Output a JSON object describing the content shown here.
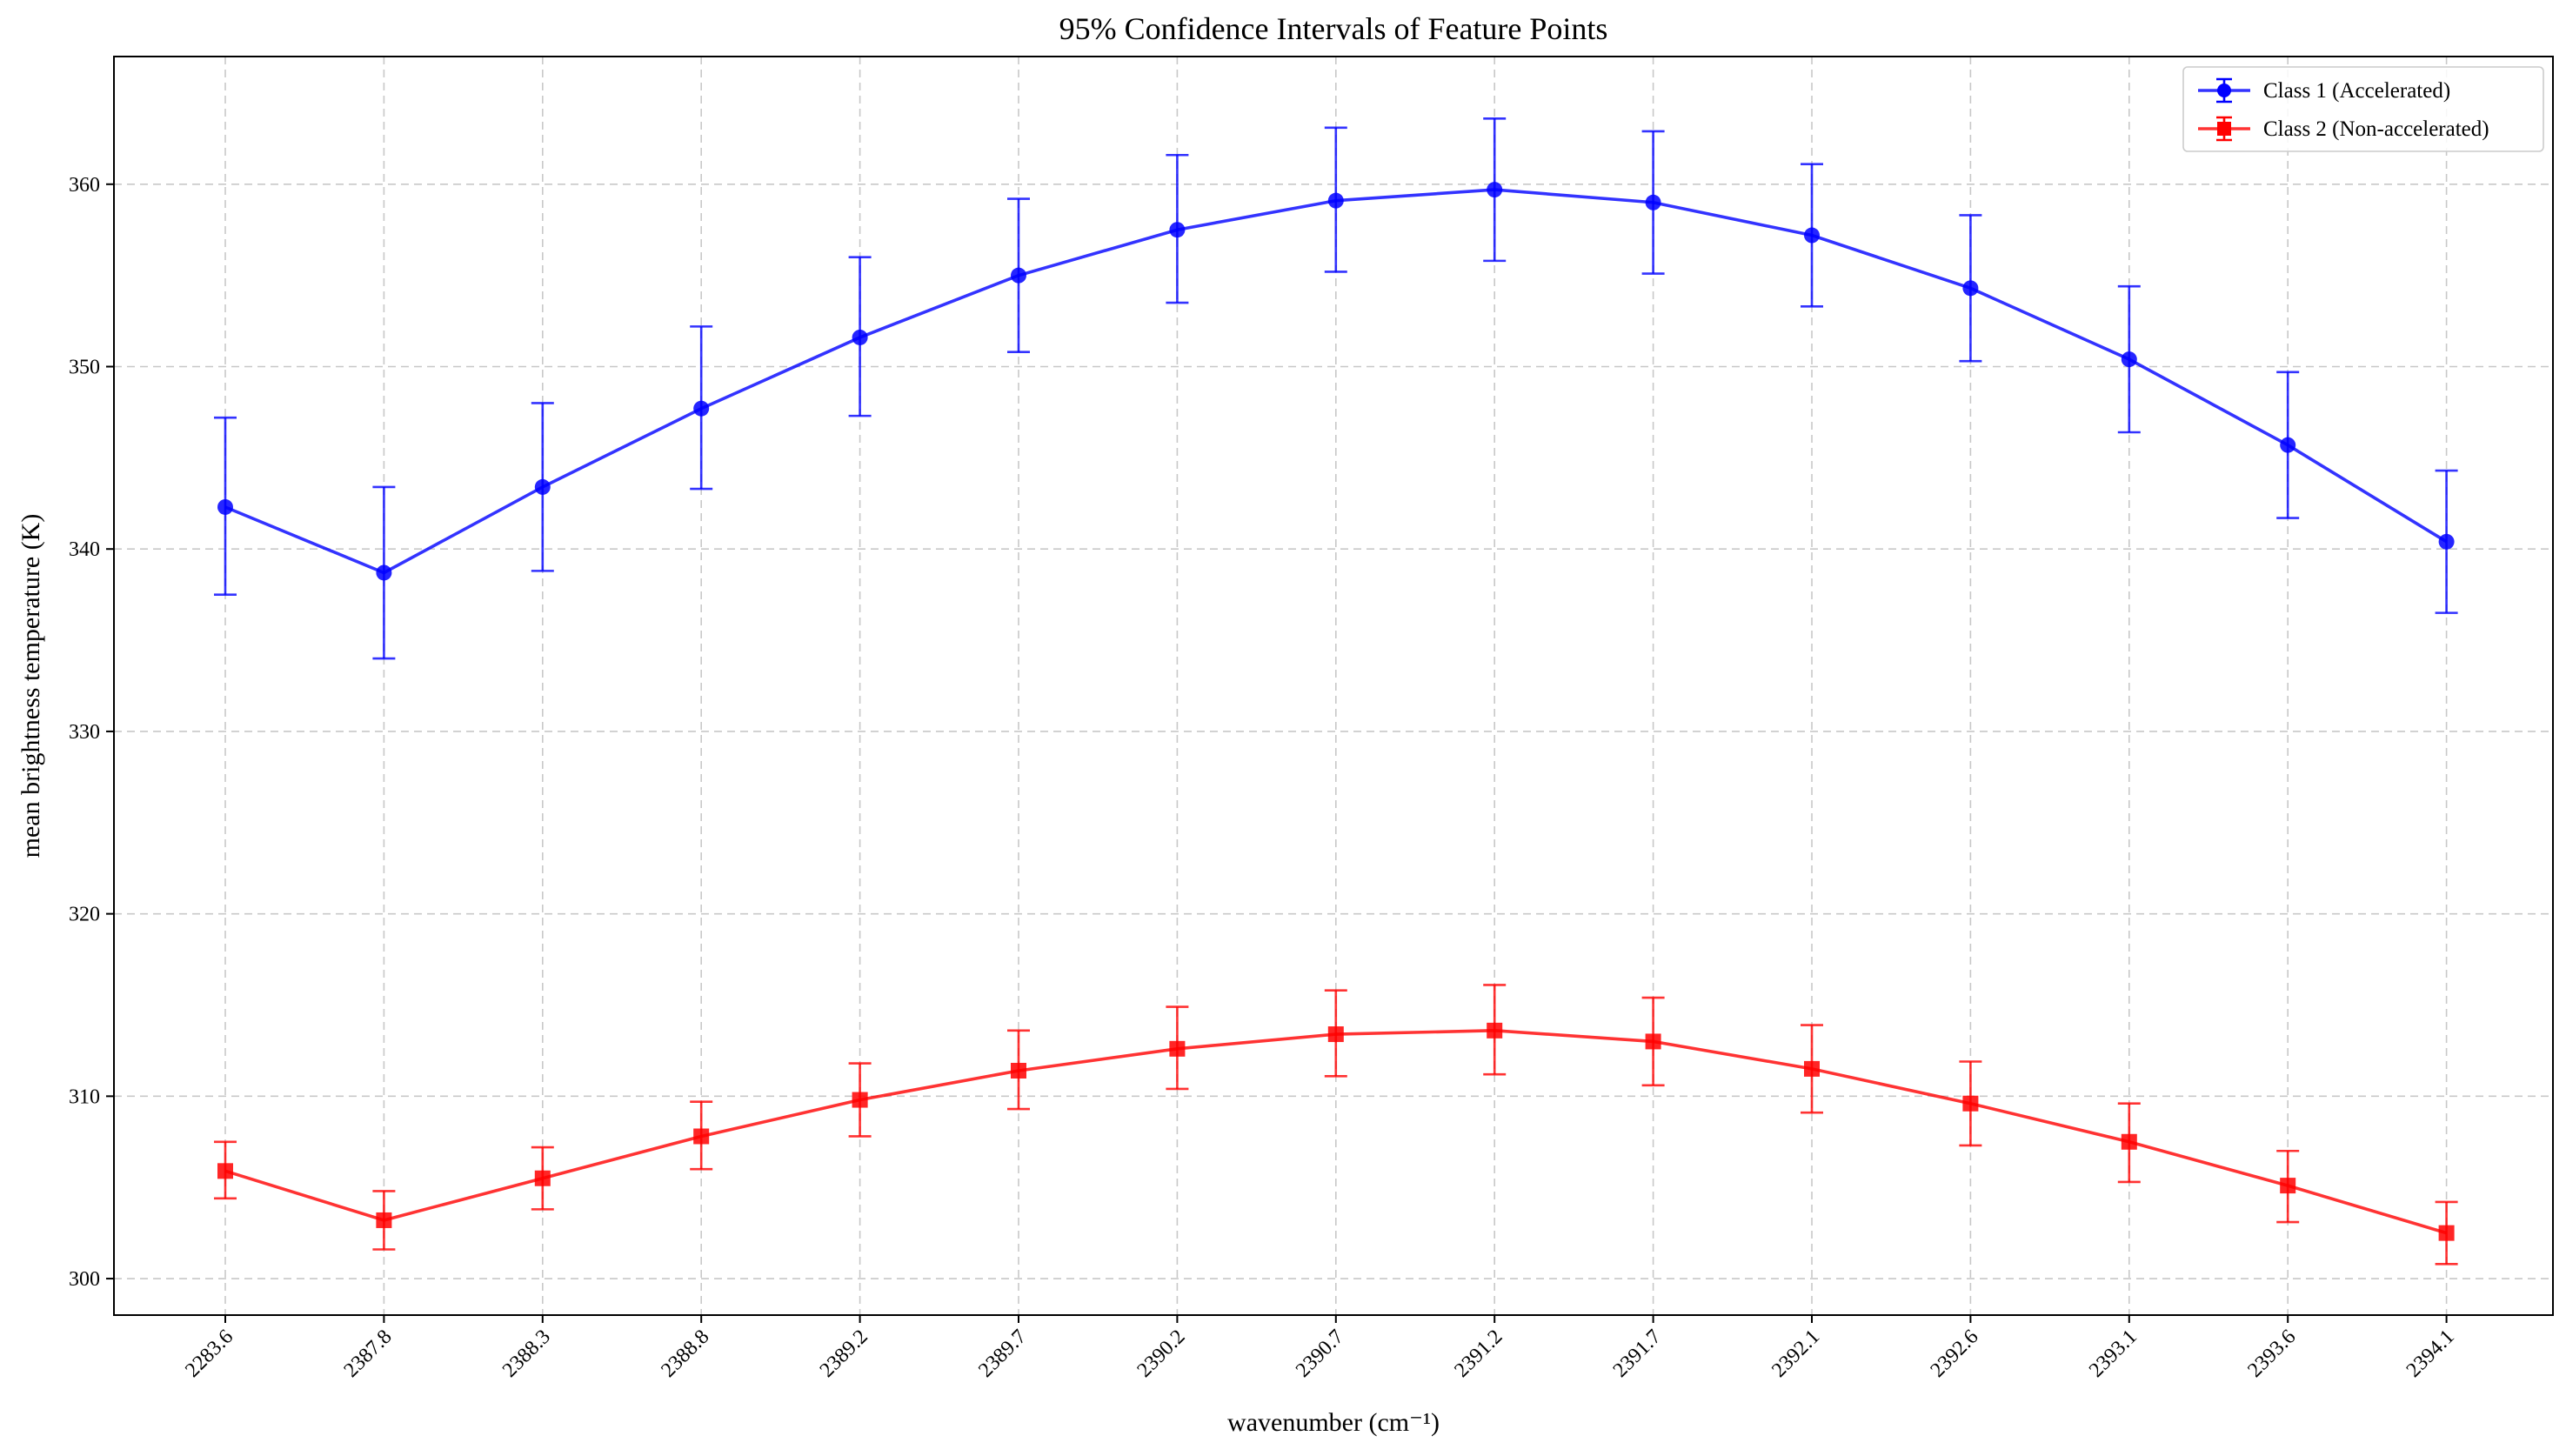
{
  "chart_data": {
    "type": "line",
    "title": "95% Confidence Intervals of Feature Points",
    "xlabel": "wavenumber (cm⁻¹)",
    "ylabel": "mean brightness temperature (K)",
    "categories": [
      "2283.6",
      "2387.8",
      "2388.3",
      "2388.8",
      "2389.2",
      "2389.7",
      "2390.2",
      "2390.7",
      "2391.2",
      "2391.7",
      "2392.1",
      "2392.6",
      "2393.1",
      "2393.6",
      "2394.1"
    ],
    "ylim": [
      298,
      367
    ],
    "yticks": [
      300,
      310,
      320,
      330,
      340,
      350,
      360
    ],
    "grid": true,
    "legend_position": "top-right",
    "series": [
      {
        "name": "Class 1 (Accelerated)",
        "color": "#0000ff",
        "marker": "circle",
        "values": [
          342.3,
          338.7,
          343.4,
          347.7,
          351.6,
          355.0,
          357.5,
          359.1,
          359.7,
          359.0,
          357.2,
          354.3,
          350.4,
          345.7,
          340.4
        ],
        "lower": [
          337.5,
          334.0,
          338.8,
          343.3,
          347.3,
          350.8,
          353.5,
          355.2,
          355.8,
          355.1,
          353.3,
          350.3,
          346.4,
          341.7,
          336.5
        ],
        "upper": [
          347.2,
          343.4,
          348.0,
          352.2,
          356.0,
          359.2,
          361.6,
          363.1,
          363.6,
          362.9,
          361.1,
          358.3,
          354.4,
          349.7,
          344.3
        ]
      },
      {
        "name": "Class 2 (Non-accelerated)",
        "color": "#ff0000",
        "marker": "square",
        "values": [
          305.9,
          303.2,
          305.5,
          307.8,
          309.8,
          311.4,
          312.6,
          313.4,
          313.6,
          313.0,
          311.5,
          309.6,
          307.5,
          305.1,
          302.5
        ],
        "lower": [
          304.4,
          301.6,
          303.8,
          306.0,
          307.8,
          309.3,
          310.4,
          311.1,
          311.2,
          310.6,
          309.1,
          307.3,
          305.3,
          303.1,
          300.8
        ],
        "upper": [
          307.5,
          304.8,
          307.2,
          309.7,
          311.8,
          313.6,
          314.9,
          315.8,
          316.1,
          315.4,
          313.9,
          311.9,
          309.6,
          307.0,
          304.2
        ]
      }
    ]
  }
}
